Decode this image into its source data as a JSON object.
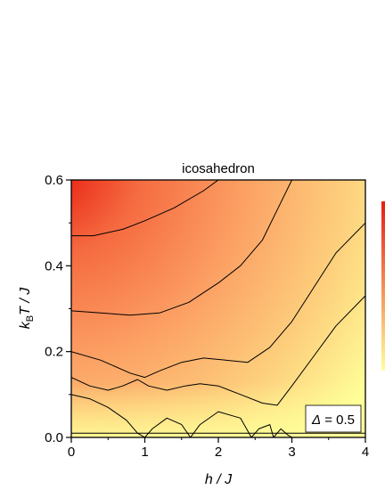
{
  "chart_data": {
    "type": "heatmap",
    "title": "icosahedron",
    "xlabel": "h / J",
    "ylabel_parts": [
      "k",
      "B",
      "T / J"
    ],
    "xlim": [
      0,
      4
    ],
    "ylim": [
      0,
      0.6
    ],
    "x_ticks": [
      "0",
      "1",
      "2",
      "3",
      "4"
    ],
    "y_ticks": [
      "0.0",
      "0.2",
      "0.4",
      "0.6"
    ],
    "annotation": {
      "symbol": "Δ",
      "text": " = 0.5"
    },
    "colorscale": [
      "#ffff99",
      "#fdd27e",
      "#fca064",
      "#f56a40",
      "#e81c10"
    ],
    "contours": [
      {
        "name": "c1",
        "points": [
          [
            0,
            0.6
          ],
          [
            0.4,
            0.6
          ],
          [
            1.0,
            0.6
          ],
          [
            1.4,
            0.6
          ]
        ]
      },
      {
        "name": "c2",
        "points": [
          [
            0,
            0.47
          ],
          [
            0.3,
            0.47
          ],
          [
            0.7,
            0.485
          ],
          [
            1.0,
            0.505
          ],
          [
            1.4,
            0.535
          ],
          [
            1.8,
            0.575
          ],
          [
            2.0,
            0.6
          ]
        ]
      },
      {
        "name": "c3",
        "points": [
          [
            0,
            0.295
          ],
          [
            0.4,
            0.29
          ],
          [
            0.8,
            0.285
          ],
          [
            1.2,
            0.29
          ],
          [
            1.6,
            0.315
          ],
          [
            2.0,
            0.36
          ],
          [
            2.3,
            0.4
          ],
          [
            2.6,
            0.46
          ],
          [
            2.8,
            0.53
          ],
          [
            3.0,
            0.6
          ]
        ]
      },
      {
        "name": "c4",
        "points": [
          [
            0,
            0.2
          ],
          [
            0.4,
            0.18
          ],
          [
            0.8,
            0.15
          ],
          [
            1.0,
            0.14
          ],
          [
            1.2,
            0.155
          ],
          [
            1.5,
            0.175
          ],
          [
            1.8,
            0.185
          ],
          [
            2.1,
            0.18
          ],
          [
            2.4,
            0.175
          ],
          [
            2.7,
            0.21
          ],
          [
            3.0,
            0.27
          ],
          [
            3.3,
            0.35
          ],
          [
            3.6,
            0.43
          ],
          [
            4.0,
            0.5
          ]
        ]
      },
      {
        "name": "c5",
        "points": [
          [
            0,
            0.14
          ],
          [
            0.25,
            0.12
          ],
          [
            0.5,
            0.11
          ],
          [
            0.7,
            0.12
          ],
          [
            0.9,
            0.135
          ],
          [
            1.05,
            0.12
          ],
          [
            1.3,
            0.11
          ],
          [
            1.55,
            0.12
          ],
          [
            1.75,
            0.125
          ],
          [
            2.0,
            0.12
          ],
          [
            2.3,
            0.1
          ],
          [
            2.6,
            0.08
          ],
          [
            2.8,
            0.075
          ],
          [
            3.0,
            0.12
          ],
          [
            3.3,
            0.19
          ],
          [
            3.6,
            0.26
          ],
          [
            4.0,
            0.33
          ]
        ]
      },
      {
        "name": "c6",
        "points": [
          [
            0,
            0.1
          ],
          [
            0.25,
            0.09
          ],
          [
            0.5,
            0.07
          ],
          [
            0.75,
            0.04
          ],
          [
            0.9,
            0.01
          ],
          [
            1.0,
            0.0
          ],
          [
            1.1,
            0.02
          ],
          [
            1.3,
            0.045
          ],
          [
            1.5,
            0.03
          ],
          [
            1.62,
            0.0
          ],
          [
            1.75,
            0.03
          ],
          [
            2.0,
            0.06
          ],
          [
            2.3,
            0.045
          ],
          [
            2.45,
            0.0
          ],
          [
            2.55,
            0.02
          ],
          [
            2.7,
            0.03
          ],
          [
            2.75,
            0.0
          ],
          [
            2.85,
            0.02
          ],
          [
            2.95,
            0.005
          ],
          [
            3.0,
            0.0
          ]
        ]
      },
      {
        "name": "c7",
        "points": [
          [
            0,
            0.01
          ],
          [
            4.0,
            0.01
          ]
        ]
      }
    ]
  }
}
